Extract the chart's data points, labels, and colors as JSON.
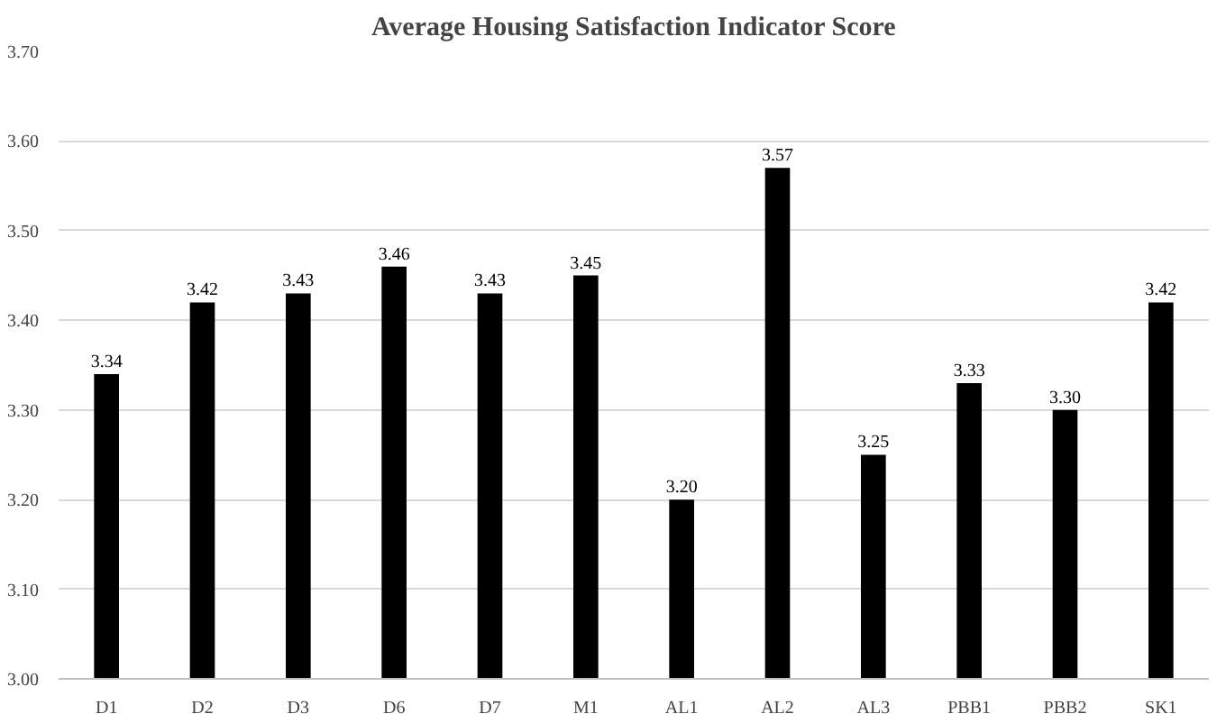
{
  "chart_data": {
    "type": "bar",
    "title": "Average Housing Satisfaction Indicator Score",
    "categories": [
      "D1",
      "D2",
      "D3",
      "D6",
      "D7",
      "M1",
      "AL1",
      "AL2",
      "AL3",
      "PBB1",
      "PBB2",
      "SK1"
    ],
    "values": [
      3.34,
      3.42,
      3.43,
      3.46,
      3.43,
      3.45,
      3.2,
      3.57,
      3.25,
      3.33,
      3.3,
      3.42
    ],
    "value_labels": [
      "3.34",
      "3.42",
      "3.43",
      "3.46",
      "3.43",
      "3.45",
      "3.20",
      "3.57",
      "3.25",
      "3.33",
      "3.30",
      "3.42"
    ],
    "color": "#000000",
    "ylim": [
      3.0,
      3.7
    ],
    "yticks": [
      {
        "value": 3.0,
        "label": "3.00"
      },
      {
        "value": 3.1,
        "label": "3.10"
      },
      {
        "value": 3.2,
        "label": "3.20"
      },
      {
        "value": 3.3,
        "label": "3.30"
      },
      {
        "value": 3.4,
        "label": "3.40"
      },
      {
        "value": 3.5,
        "label": "3.50"
      },
      {
        "value": 3.6,
        "label": "3.60"
      },
      {
        "value": 3.7,
        "label": "3.70"
      }
    ],
    "grid": "y"
  }
}
